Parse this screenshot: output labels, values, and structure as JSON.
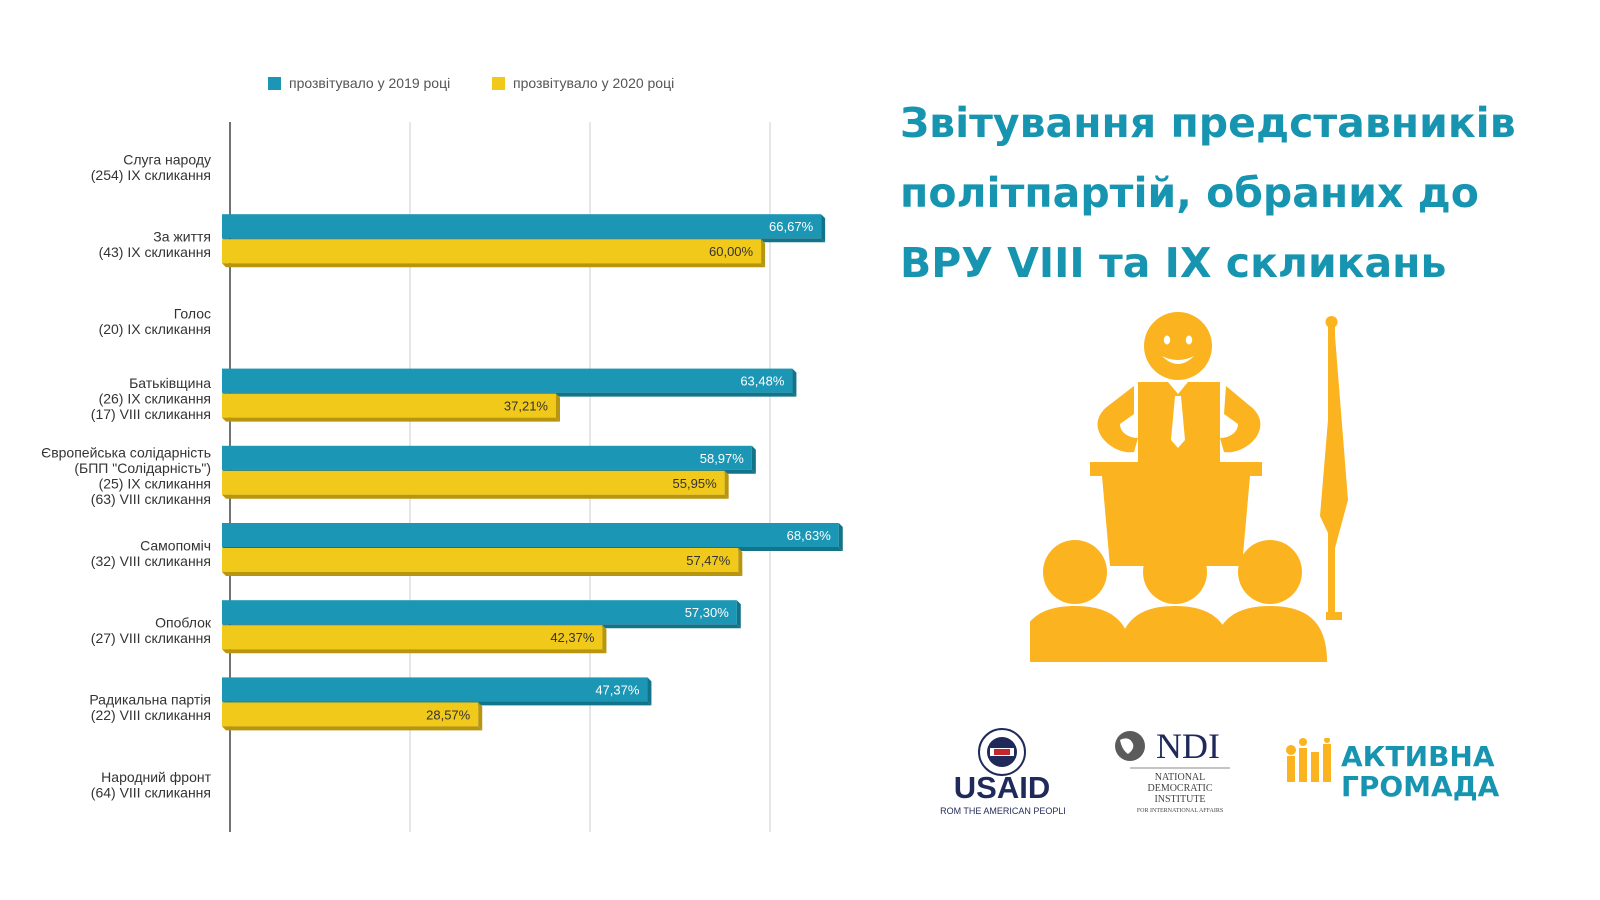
{
  "title": {
    "line1": "Звітування представників",
    "line2": "політпартій, обраних до",
    "line3": "ВРУ VIII та IX скликань"
  },
  "colors": {
    "series_2019": "#1b96b4",
    "series_2019_dark": "#127489",
    "series_2020": "#f1c91a",
    "series_2020_dark": "#b8950e",
    "title": "#1795b0",
    "illustration": "#fbb31f"
  },
  "chart_data": {
    "type": "bar",
    "orientation": "horizontal",
    "categories": [
      [
        "Слуга народу",
        "(254) IX скликання"
      ],
      [
        "За життя",
        "(43) IX скликання"
      ],
      [
        "Голос",
        "(20) IX скликання"
      ],
      [
        "Батьківщина",
        "(26) IX скликання",
        "(17) VIII скликання"
      ],
      [
        "Європейська солідарність",
        "(БПП \"Солідарність\")",
        "(25) IX скликання",
        "(63) VIII скликання"
      ],
      [
        "Самопоміч",
        "(32) VIII скликання"
      ],
      [
        "Опоблок",
        "(27) VIII скликання"
      ],
      [
        "Радикальна партія",
        "(22) VIII скликання"
      ],
      [
        "Народний фронт",
        "(64) VIII скликання"
      ]
    ],
    "series": [
      {
        "name": "прозвітувало у 2019 році",
        "values": [
          null,
          66.67,
          null,
          63.48,
          58.97,
          68.63,
          57.3,
          47.37,
          null
        ]
      },
      {
        "name": "прозвітувало у 2020 році",
        "values": [
          null,
          60.0,
          null,
          37.21,
          55.95,
          57.47,
          42.37,
          28.57,
          null
        ]
      }
    ],
    "data_labels": [
      [
        null,
        "66,67%",
        null,
        "63,48%",
        "58,97%",
        "68,63%",
        "57,30%",
        "47,37%",
        null
      ],
      [
        null,
        "60,00%",
        null,
        "37,21%",
        "55,95%",
        "57,47%",
        "42,37%",
        "28,57%",
        null
      ]
    ],
    "xlim": [
      0,
      80
    ],
    "grid": true,
    "legend_position": "top"
  },
  "logos": {
    "usaid": {
      "text": "USAID",
      "tagline": "FROM THE AMERICAN PEOPLE"
    },
    "ndi": {
      "text": "NDI",
      "line1": "NATIONAL",
      "line2": "DEMOCRATIC",
      "line3": "INSTITUTE",
      "line4": "FOR INTERNATIONAL AFFAIRS"
    },
    "gromada": {
      "line1": "АКТИВНА",
      "line2": "ГРОМАДА"
    }
  }
}
